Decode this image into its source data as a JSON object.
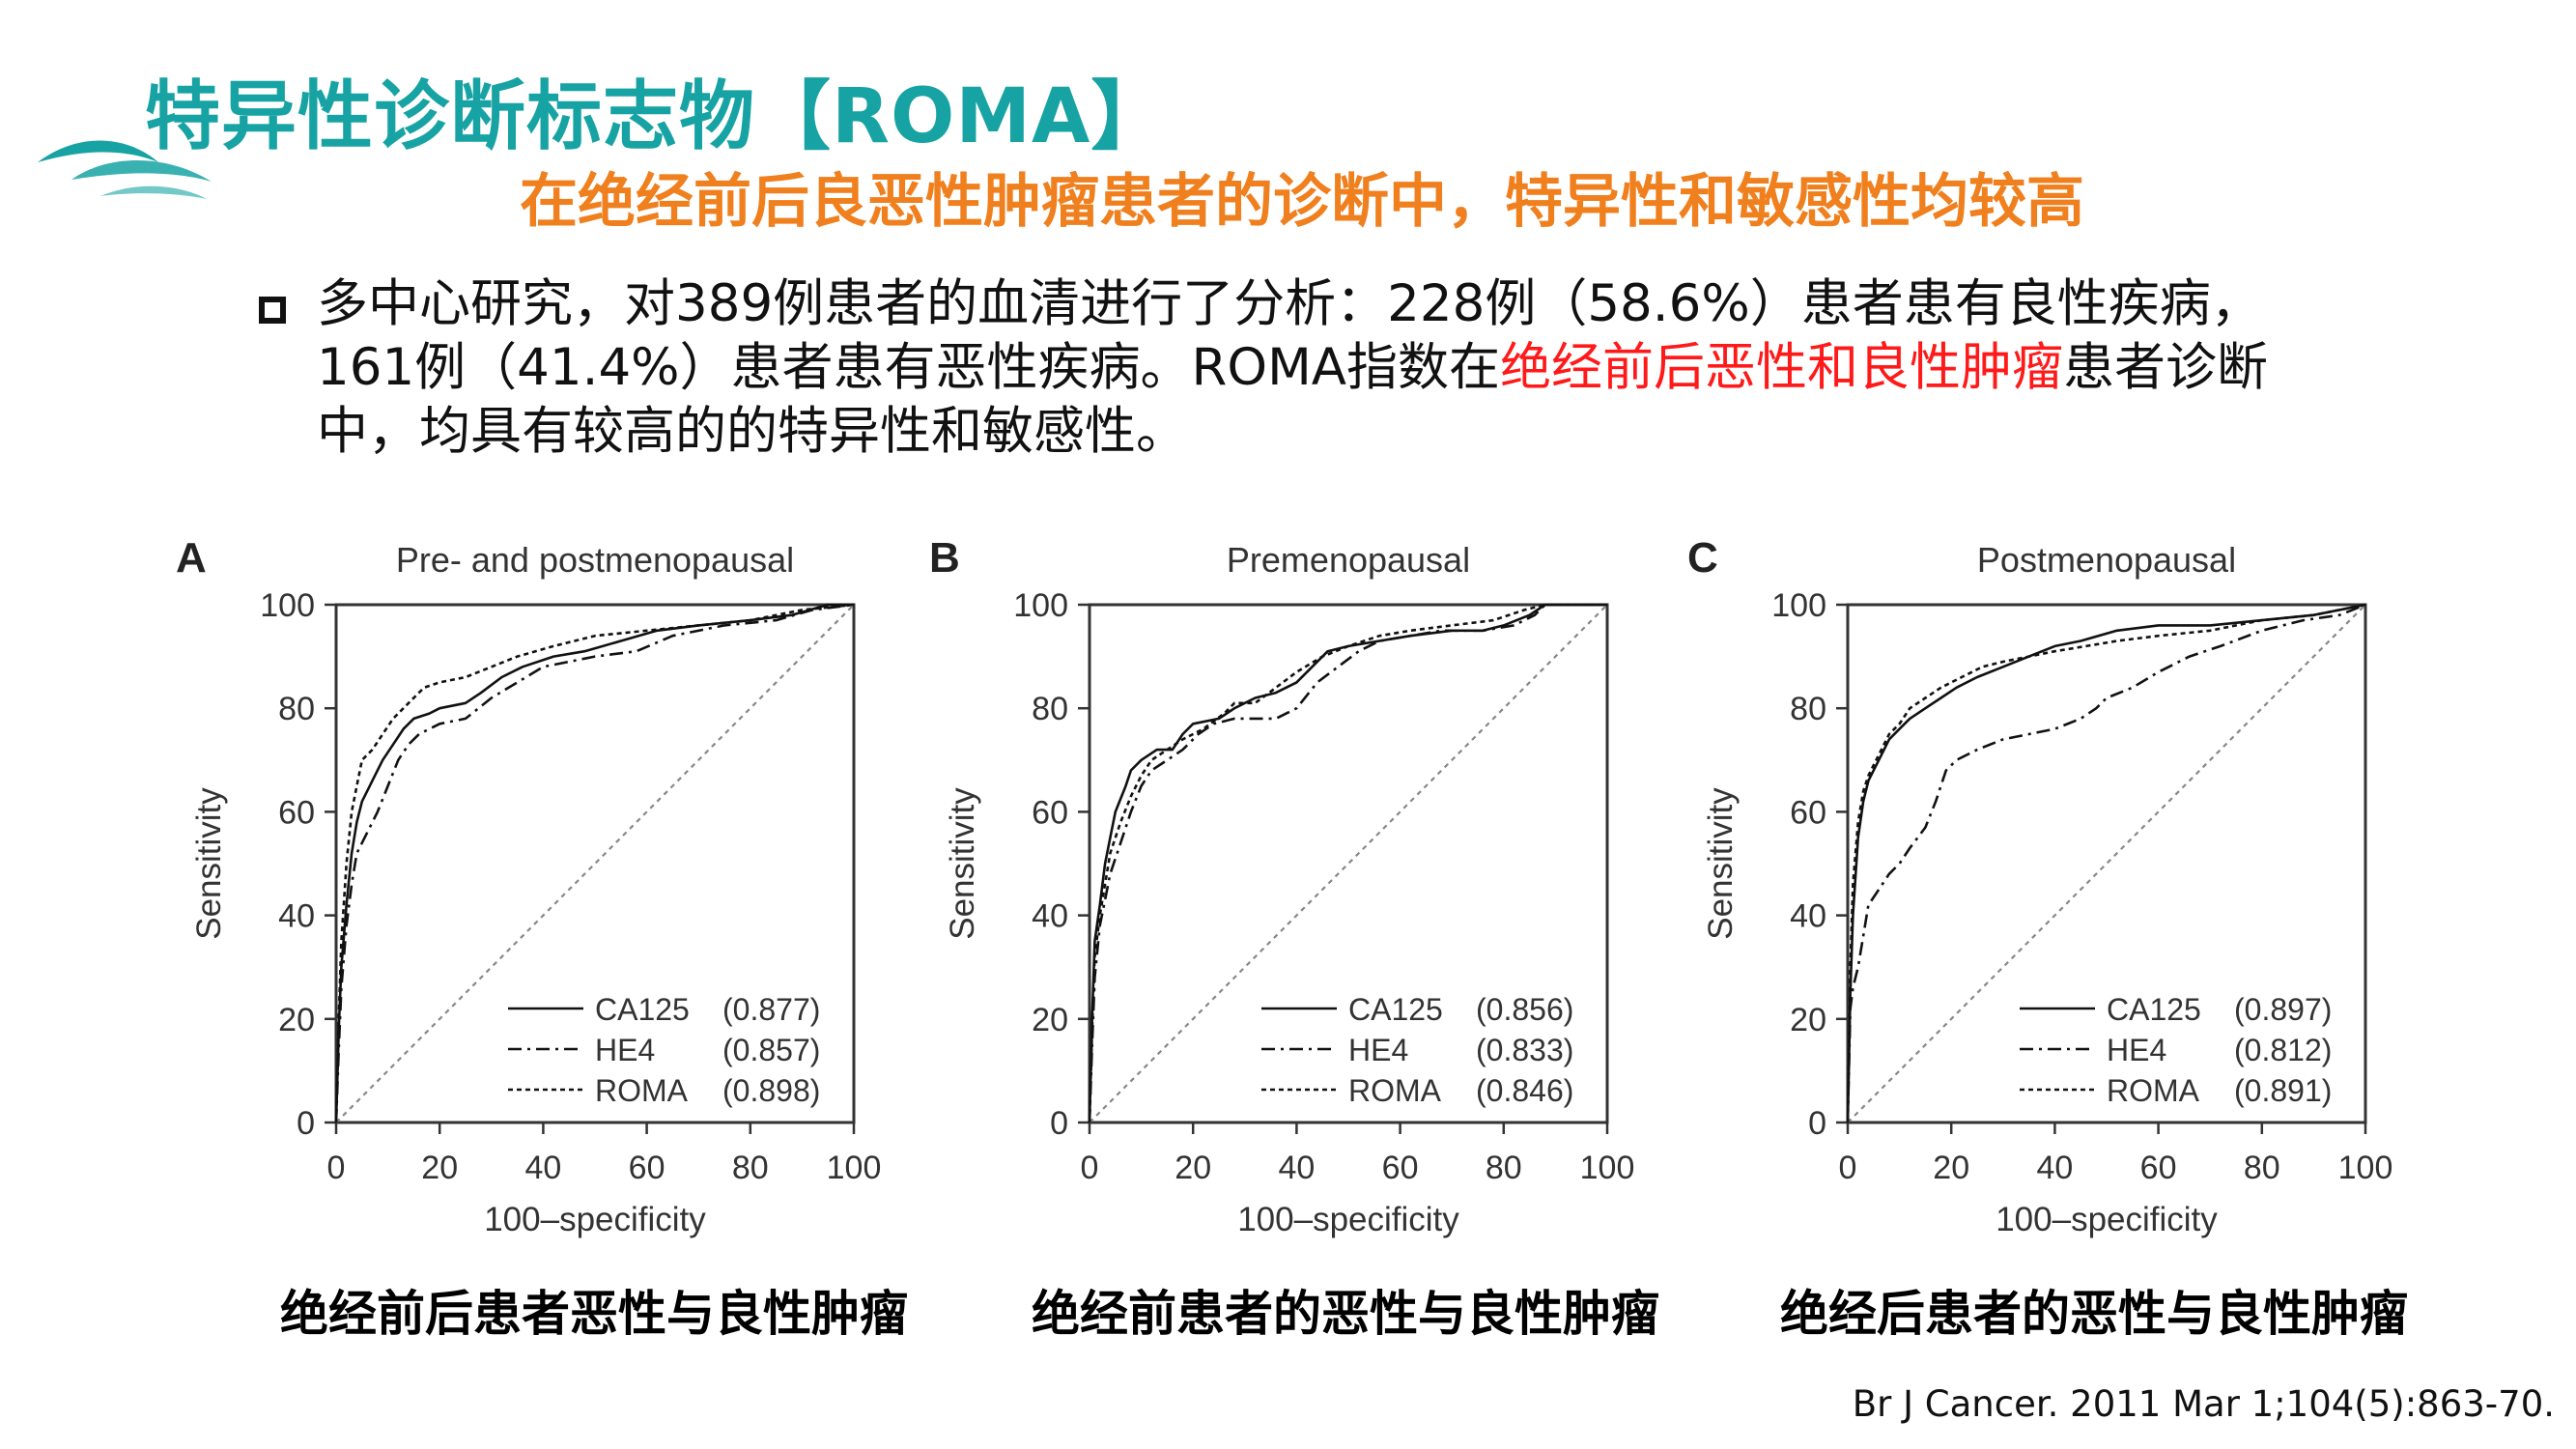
{
  "header": {
    "title": "特异性诊断标志物【ROMA】",
    "subtitle": "在绝经前后良恶性肿瘤患者的诊断中，特异性和敏感性均较高",
    "logo_icon": "wave-logo-icon"
  },
  "bullet": {
    "part1": "多中心研究，对389例患者的血清进行了分析：228例（58.6%）患者患有良性疾病，161例（41.4%）患者患有恶性疾病。ROMA指数在",
    "highlight": "绝经前后恶性和良性肿瘤",
    "part2": "患者诊断中，均具有较高的的特异性和敏感性。"
  },
  "captions": [
    "绝经前后患者恶性与良性肿瘤",
    "绝经前患者的恶性与良性肿瘤",
    "绝经后患者的恶性与良性肿瘤"
  ],
  "reference": "Br J Cancer. 2011 Mar 1;104(5):863-70.",
  "colors": {
    "title": "#17a3a3",
    "subtitle": "#f07f1e",
    "highlight": "#ff1a1a",
    "curve": "#111111",
    "diagonal": "#888888"
  },
  "chart_data": [
    {
      "type": "line",
      "panel_label": "A",
      "title": "Pre- and postmenopausal",
      "xlabel": "100–specificity",
      "ylabel": "Sensitivity",
      "xlim": [
        0,
        100
      ],
      "ylim": [
        0,
        100
      ],
      "xticks": [
        "0",
        "20",
        "40",
        "60",
        "80",
        "100"
      ],
      "yticks": [
        "0",
        "20",
        "40",
        "60",
        "80",
        "100"
      ],
      "series": [
        {
          "name": "CA125",
          "auc": "(0.877)",
          "dash": "solid",
          "points": [
            [
              0,
              0
            ],
            [
              0.5,
              18
            ],
            [
              1,
              30
            ],
            [
              2,
              42
            ],
            [
              3,
              52
            ],
            [
              4,
              58
            ],
            [
              5,
              62
            ],
            [
              7,
              66
            ],
            [
              9,
              70
            ],
            [
              11,
              73
            ],
            [
              13,
              76
            ],
            [
              15,
              78
            ],
            [
              18,
              79
            ],
            [
              20,
              80
            ],
            [
              25,
              81
            ],
            [
              28,
              83
            ],
            [
              32,
              86
            ],
            [
              36,
              88
            ],
            [
              42,
              90
            ],
            [
              48,
              91
            ],
            [
              55,
              93
            ],
            [
              62,
              95
            ],
            [
              70,
              96
            ],
            [
              80,
              97
            ],
            [
              88,
              98
            ],
            [
              95,
              100
            ],
            [
              100,
              100
            ]
          ]
        },
        {
          "name": "HE4",
          "auc": "(0.857)",
          "dash": "dashdot",
          "points": [
            [
              0,
              0
            ],
            [
              0.5,
              14
            ],
            [
              1,
              26
            ],
            [
              2,
              38
            ],
            [
              3,
              46
            ],
            [
              4,
              52
            ],
            [
              6,
              56
            ],
            [
              8,
              60
            ],
            [
              10,
              65
            ],
            [
              12,
              70
            ],
            [
              14,
              73
            ],
            [
              16,
              75
            ],
            [
              20,
              77
            ],
            [
              25,
              78
            ],
            [
              30,
              82
            ],
            [
              35,
              85
            ],
            [
              40,
              88
            ],
            [
              45,
              89
            ],
            [
              50,
              90
            ],
            [
              58,
              91
            ],
            [
              65,
              94
            ],
            [
              75,
              96
            ],
            [
              85,
              97
            ],
            [
              92,
              99
            ],
            [
              100,
              100
            ]
          ]
        },
        {
          "name": "ROMA",
          "auc": "(0.898)",
          "dash": "dotted",
          "points": [
            [
              0,
              0
            ],
            [
              0.5,
              20
            ],
            [
              1,
              35
            ],
            [
              2,
              50
            ],
            [
              3,
              60
            ],
            [
              4,
              65
            ],
            [
              5,
              70
            ],
            [
              7,
              72
            ],
            [
              9,
              75
            ],
            [
              11,
              78
            ],
            [
              14,
              81
            ],
            [
              17,
              84
            ],
            [
              20,
              85
            ],
            [
              25,
              86
            ],
            [
              30,
              88
            ],
            [
              35,
              90
            ],
            [
              42,
              92
            ],
            [
              50,
              94
            ],
            [
              60,
              95
            ],
            [
              70,
              96
            ],
            [
              80,
              97
            ],
            [
              90,
              99
            ],
            [
              100,
              100
            ]
          ]
        }
      ]
    },
    {
      "type": "line",
      "panel_label": "B",
      "title": "Premenopausal",
      "xlabel": "100–specificity",
      "ylabel": "Sensitivity",
      "xlim": [
        0,
        100
      ],
      "ylim": [
        0,
        100
      ],
      "xticks": [
        "0",
        "20",
        "40",
        "60",
        "80",
        "100"
      ],
      "yticks": [
        "0",
        "20",
        "40",
        "60",
        "80",
        "100"
      ],
      "series": [
        {
          "name": "CA125",
          "auc": "(0.856)",
          "dash": "solid",
          "points": [
            [
              0,
              0
            ],
            [
              0.5,
              20
            ],
            [
              1,
              35
            ],
            [
              2,
              42
            ],
            [
              3,
              50
            ],
            [
              4,
              55
            ],
            [
              5,
              60
            ],
            [
              7,
              65
            ],
            [
              8,
              68
            ],
            [
              10,
              70
            ],
            [
              13,
              72
            ],
            [
              16,
              72
            ],
            [
              18,
              75
            ],
            [
              20,
              77
            ],
            [
              25,
              78
            ],
            [
              28,
              80
            ],
            [
              32,
              82
            ],
            [
              36,
              83
            ],
            [
              40,
              85
            ],
            [
              43,
              88
            ],
            [
              46,
              91
            ],
            [
              50,
              92
            ],
            [
              56,
              93
            ],
            [
              62,
              94
            ],
            [
              70,
              95
            ],
            [
              76,
              95
            ],
            [
              80,
              96
            ],
            [
              85,
              98
            ],
            [
              88,
              100
            ],
            [
              100,
              100
            ]
          ]
        },
        {
          "name": "HE4",
          "auc": "(0.833)",
          "dash": "dashdot",
          "points": [
            [
              0,
              0
            ],
            [
              0.5,
              15
            ],
            [
              1,
              28
            ],
            [
              2,
              38
            ],
            [
              3,
              43
            ],
            [
              4,
              48
            ],
            [
              6,
              54
            ],
            [
              8,
              60
            ],
            [
              10,
              65
            ],
            [
              12,
              68
            ],
            [
              15,
              70
            ],
            [
              18,
              72
            ],
            [
              21,
              75
            ],
            [
              24,
              77
            ],
            [
              28,
              78
            ],
            [
              32,
              78
            ],
            [
              36,
              78
            ],
            [
              40,
              80
            ],
            [
              44,
              85
            ],
            [
              48,
              88
            ],
            [
              52,
              91
            ],
            [
              56,
              93
            ],
            [
              62,
              94
            ],
            [
              68,
              95
            ],
            [
              76,
              95
            ],
            [
              82,
              96
            ],
            [
              86,
              98
            ],
            [
              88,
              100
            ],
            [
              100,
              100
            ]
          ]
        },
        {
          "name": "ROMA",
          "auc": "(0.846)",
          "dash": "dotted",
          "points": [
            [
              0,
              0
            ],
            [
              0.5,
              18
            ],
            [
              1,
              32
            ],
            [
              2,
              40
            ],
            [
              3,
              46
            ],
            [
              4,
              52
            ],
            [
              6,
              58
            ],
            [
              8,
              63
            ],
            [
              10,
              67
            ],
            [
              12,
              70
            ],
            [
              15,
              72
            ],
            [
              18,
              74
            ],
            [
              22,
              76
            ],
            [
              26,
              79
            ],
            [
              28,
              81
            ],
            [
              32,
              81
            ],
            [
              36,
              84
            ],
            [
              40,
              87
            ],
            [
              45,
              90
            ],
            [
              50,
              92
            ],
            [
              56,
              94
            ],
            [
              62,
              95
            ],
            [
              70,
              96
            ],
            [
              78,
              97
            ],
            [
              84,
              99
            ],
            [
              88,
              100
            ],
            [
              100,
              100
            ]
          ]
        }
      ]
    },
    {
      "type": "line",
      "panel_label": "C",
      "title": "Postmenopausal",
      "xlabel": "100–specificity",
      "ylabel": "Sensitivity",
      "xlim": [
        0,
        100
      ],
      "ylim": [
        0,
        100
      ],
      "xticks": [
        "0",
        "20",
        "40",
        "60",
        "80",
        "100"
      ],
      "yticks": [
        "0",
        "20",
        "40",
        "60",
        "80",
        "100"
      ],
      "series": [
        {
          "name": "CA125",
          "auc": "(0.897)",
          "dash": "solid",
          "points": [
            [
              0,
              0
            ],
            [
              0.5,
              25
            ],
            [
              1,
              40
            ],
            [
              2,
              55
            ],
            [
              3,
              62
            ],
            [
              4,
              66
            ],
            [
              6,
              70
            ],
            [
              8,
              74
            ],
            [
              10,
              76
            ],
            [
              12,
              78
            ],
            [
              15,
              80
            ],
            [
              18,
              82
            ],
            [
              21,
              84
            ],
            [
              25,
              86
            ],
            [
              30,
              88
            ],
            [
              35,
              90
            ],
            [
              40,
              92
            ],
            [
              45,
              93
            ],
            [
              52,
              95
            ],
            [
              60,
              96
            ],
            [
              70,
              96
            ],
            [
              80,
              97
            ],
            [
              90,
              98
            ],
            [
              95,
              99
            ],
            [
              100,
              100
            ]
          ]
        },
        {
          "name": "HE4",
          "auc": "(0.812)",
          "dash": "dashdot",
          "points": [
            [
              0,
              0
            ],
            [
              0.5,
              22
            ],
            [
              1,
              26
            ],
            [
              2,
              30
            ],
            [
              3,
              36
            ],
            [
              4,
              42
            ],
            [
              6,
              45
            ],
            [
              8,
              48
            ],
            [
              10,
              50
            ],
            [
              12,
              53
            ],
            [
              15,
              57
            ],
            [
              17,
              62
            ],
            [
              19,
              68
            ],
            [
              21,
              70
            ],
            [
              25,
              72
            ],
            [
              30,
              74
            ],
            [
              35,
              75
            ],
            [
              40,
              76
            ],
            [
              45,
              78
            ],
            [
              48,
              80
            ],
            [
              50,
              82
            ],
            [
              55,
              84
            ],
            [
              60,
              87
            ],
            [
              66,
              90
            ],
            [
              72,
              92
            ],
            [
              80,
              95
            ],
            [
              88,
              97
            ],
            [
              95,
              98
            ],
            [
              100,
              100
            ]
          ]
        },
        {
          "name": "ROMA",
          "auc": "(0.891)",
          "dash": "dotted",
          "points": [
            [
              0,
              0
            ],
            [
              0.5,
              30
            ],
            [
              1,
              46
            ],
            [
              2,
              58
            ],
            [
              3,
              64
            ],
            [
              4,
              67
            ],
            [
              6,
              71
            ],
            [
              8,
              75
            ],
            [
              10,
              77
            ],
            [
              12,
              80
            ],
            [
              15,
              82
            ],
            [
              18,
              84
            ],
            [
              22,
              86
            ],
            [
              26,
              88
            ],
            [
              30,
              89
            ],
            [
              35,
              90
            ],
            [
              40,
              91
            ],
            [
              46,
              92
            ],
            [
              52,
              93
            ],
            [
              60,
              94
            ],
            [
              70,
              95
            ],
            [
              80,
              97
            ],
            [
              90,
              98
            ],
            [
              100,
              100
            ]
          ]
        }
      ]
    }
  ]
}
